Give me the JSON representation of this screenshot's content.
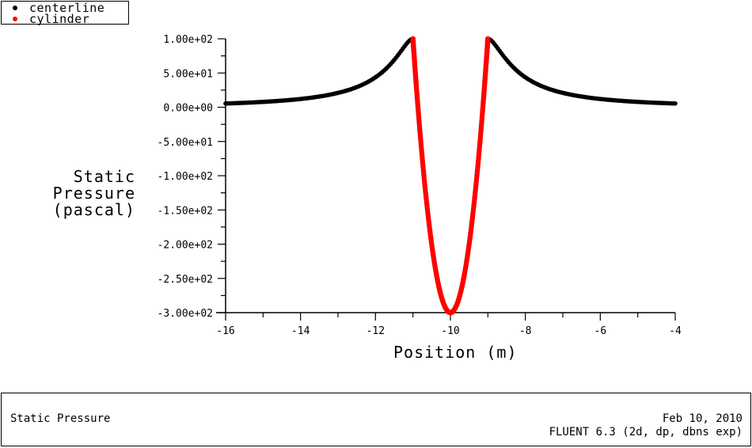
{
  "legend": {
    "items": [
      {
        "label": "centerline",
        "color": "#000000"
      },
      {
        "label": "cylinder",
        "color": "#ff0000"
      }
    ]
  },
  "axes": {
    "ylabel_lines": [
      "Static",
      "Pressure",
      "(pascal)"
    ],
    "xlabel": "Position (m)"
  },
  "footer": {
    "title": "Static Pressure",
    "date": "Feb 10, 2010",
    "solver": "FLUENT 6.3 (2d, dp, dbns exp)"
  },
  "chart_data": {
    "type": "scatter",
    "title": "Static Pressure",
    "xlabel": "Position (m)",
    "ylabel": "Static Pressure (pascal)",
    "xlim": [
      -16,
      -4
    ],
    "ylim": [
      -300,
      100
    ],
    "x_ticks": [
      -16,
      -14,
      -12,
      -10,
      -8,
      -6,
      -4
    ],
    "x_tick_labels": [
      "-16",
      "-14",
      "-12",
      "-10",
      "-8",
      "-6",
      "-4"
    ],
    "y_ticks": [
      100,
      50,
      0,
      -50,
      -100,
      -150,
      -200,
      -250,
      -300
    ],
    "y_tick_labels": [
      "1.00e+02",
      "5.00e+01",
      "0.00e+00",
      "-5.00e+01",
      "-1.00e+02",
      "-1.50e+02",
      "-2.00e+02",
      "-2.50e+02",
      "-3.00e+02"
    ],
    "grid": false,
    "legend_position": "top-left",
    "series": [
      {
        "name": "centerline",
        "color": "#000000",
        "x": [
          -16,
          -15.5,
          -15,
          -14.5,
          -14,
          -13.5,
          -13,
          -12.5,
          -12,
          -11.75,
          -11.5,
          -11.25,
          -11,
          -9,
          -8.75,
          -8.5,
          -8.25,
          -8,
          -7.5,
          -7,
          -6.5,
          -6,
          -5.5,
          -5,
          -4.5,
          -4
        ],
        "y": [
          5.5,
          6.5,
          7.9,
          9.8,
          12.3,
          15.9,
          21.0,
          28.8,
          43.8,
          53.0,
          64.5,
          79.3,
          100,
          100,
          79.3,
          64.5,
          53.0,
          43.8,
          28.8,
          21.0,
          15.9,
          12.3,
          9.8,
          7.9,
          6.5,
          5.5
        ]
      },
      {
        "name": "cylinder",
        "color": "#ff0000",
        "x": [
          -11,
          -10.95,
          -10.87,
          -10.71,
          -10.5,
          -10.26,
          -10,
          -9.74,
          -9.5,
          -9.29,
          -9.13,
          -9.05,
          -9
        ],
        "y": [
          100,
          60.9,
          0,
          -100,
          -200,
          -273.2,
          -300,
          -273.2,
          -200,
          -100,
          0,
          60.9,
          100
        ]
      }
    ]
  }
}
